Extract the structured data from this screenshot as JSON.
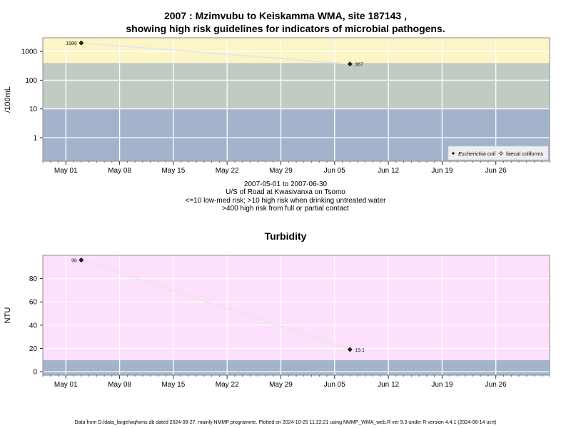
{
  "header": {
    "title_line1": "2007 : Mzimvubu to Keiskamma WMA, site 187143 ,",
    "title_line2": "showing high risk guidelines for indicators of microbial pathogens."
  },
  "micro_caption": {
    "line1": "2007-05-01 to 2007-06-30",
    "line2": "U/S of Road at Kwasivanxa on Tsomo",
    "line3": "<=10 low-med risk; >10 high risk when drinking untreated water",
    "line4": ">400 high risk from full or partial contact"
  },
  "turbidity_title": "Turbidity",
  "footer": "Data from D:/data_large/wq/wms.db dated 2024-08-27, mainly NMMP programme. Plotted on 2024-10-25 11:22:21 using NMMP_WMA_web.R ver 9.3 under R version 4.4.1 (2024-06-14 ucrt)",
  "colors": {
    "band_blue": "#a4b3cc",
    "band_grey": "#c2cbc3",
    "band_yellow": "#fcf5c5",
    "band_pink": "#fde0fb",
    "line": "#e6e6e6"
  },
  "chart_data": [
    {
      "type": "line",
      "ylabel": "/100mL",
      "xlabel": "",
      "yscale": "log",
      "ylim": [
        0.15,
        3000
      ],
      "xlim": [
        "2007-04-28",
        "2007-07-03"
      ],
      "x_ticks": [
        "May 01",
        "May 08",
        "May 15",
        "May 22",
        "May 29",
        "Jun 05",
        "Jun 12",
        "Jun 19",
        "Jun 26"
      ],
      "y_ticks": [
        "1",
        "10",
        "100",
        "1000"
      ],
      "grid": true,
      "guideline_bands": [
        {
          "from": 0.15,
          "to": 10,
          "color": "#a4b3cc"
        },
        {
          "from": 10,
          "to": 400,
          "color": "#c2cbc3"
        },
        {
          "from": 400,
          "to": 3000,
          "color": "#fcf5c5"
        }
      ],
      "series": [
        {
          "name": "Escherichia coli",
          "marker": "filled-diamond",
          "points": [
            {
              "x": "2007-05-03",
              "y": 1986,
              "label": "1986"
            },
            {
              "x": "2007-06-07",
              "y": 367,
              "label": "367"
            }
          ]
        },
        {
          "name": "faecal coliforms",
          "marker": "open-diamond",
          "points": []
        }
      ],
      "legend_position": "bottom-right"
    },
    {
      "type": "line",
      "title": "Turbidity",
      "ylabel": "NTU",
      "xlabel": "",
      "ylim": [
        -3,
        100
      ],
      "xlim": [
        "2007-04-28",
        "2007-07-03"
      ],
      "x_ticks": [
        "May 01",
        "May 08",
        "May 15",
        "May 22",
        "May 29",
        "Jun 05",
        "Jun 12",
        "Jun 19",
        "Jun 26"
      ],
      "y_ticks": [
        "0",
        "20",
        "40",
        "60",
        "80"
      ],
      "grid": true,
      "guideline_bands": [
        {
          "from": -3,
          "to": 10,
          "color": "#a4b3cc"
        },
        {
          "from": 10,
          "to": 100,
          "color": "#fde0fb"
        }
      ],
      "series": [
        {
          "name": "Turbidity",
          "marker": "filled-diamond",
          "points": [
            {
              "x": "2007-05-03",
              "y": 96,
              "label": "96"
            },
            {
              "x": "2007-06-07",
              "y": 19.1,
              "label": "19.1"
            }
          ]
        }
      ]
    }
  ]
}
